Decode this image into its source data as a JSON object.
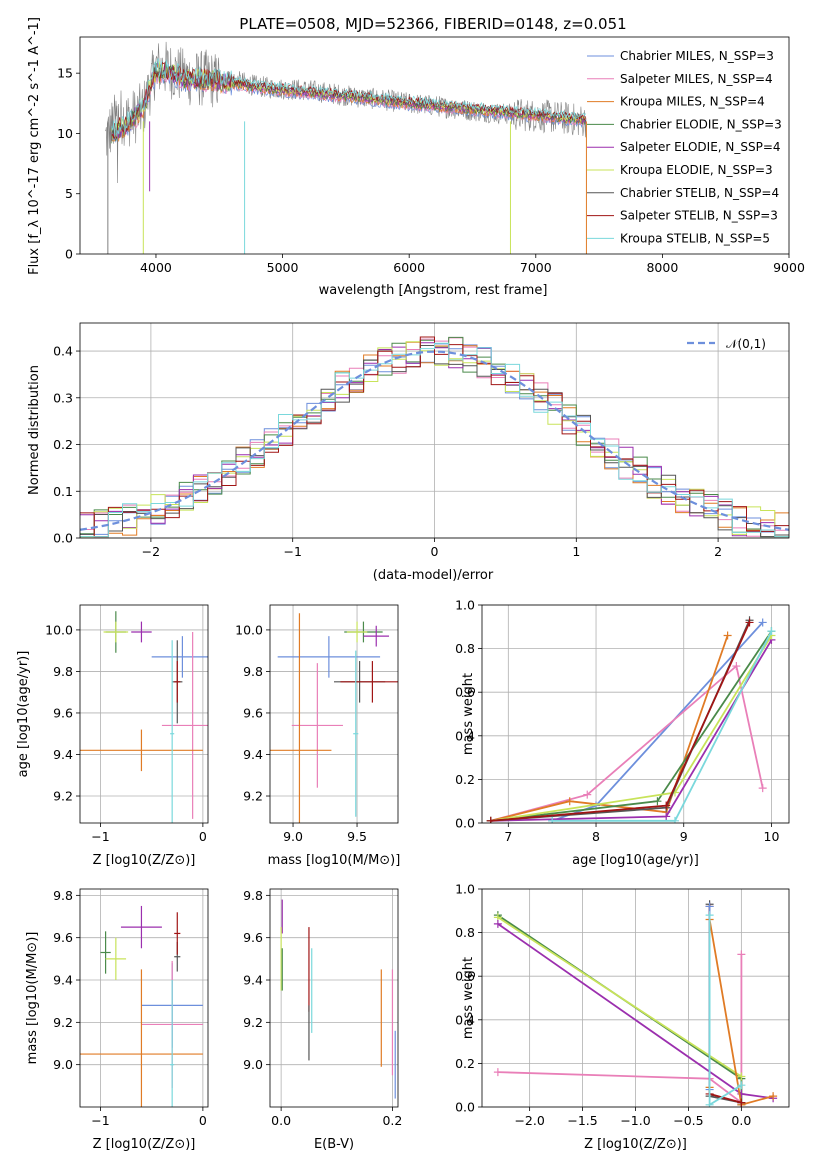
{
  "chart_data": [
    {
      "type": "line",
      "title": "PLATE=0508, MJD=52366, FIBERID=0148, z=0.051",
      "xlabel": "wavelength [Angstrom, rest frame]",
      "ylabel": "Flux [f_λ 10^-17 erg cm^-2 s^-1 A^-1]",
      "xlim": [
        3400,
        9000
      ],
      "ylim": [
        0,
        18
      ],
      "xticks": [
        4000,
        5000,
        6000,
        7000,
        8000,
        9000
      ],
      "yticks": [
        0,
        5,
        10,
        15
      ],
      "legend": {
        "placement": "right",
        "entries": [
          {
            "label": "Chabrier MILES, N_SSP=3",
            "color": "#6d8fdc"
          },
          {
            "label": "Salpeter MILES, N_SSP=4",
            "color": "#e97fb8"
          },
          {
            "label": "Kroupa MILES, N_SSP=4",
            "color": "#e07b25"
          },
          {
            "label": "Chabrier ELODIE, N_SSP=3",
            "color": "#4a8a4a"
          },
          {
            "label": "Salpeter ELODIE, N_SSP=4",
            "color": "#9b2fae"
          },
          {
            "label": "Kroupa ELODIE, N_SSP=3",
            "color": "#c8e35a"
          },
          {
            "label": "Chabrier STELIB, N_SSP=4",
            "color": "#555555"
          },
          {
            "label": "Salpeter STELIB, N_SSP=3",
            "color": "#a01515"
          },
          {
            "label": "Kroupa STELIB, N_SSP=5",
            "color": "#7ad8dc"
          }
        ]
      },
      "series": [
        {
          "name": "data",
          "color": "#808080",
          "x": [
            3600,
            3700,
            3800,
            3900,
            4000,
            4100,
            4200,
            4300,
            4400,
            4500,
            4600,
            4700,
            4800,
            4900,
            5000,
            5200,
            5400,
            5600,
            5800,
            6000,
            6200,
            6400,
            6600,
            6800,
            7000,
            7200,
            7400
          ],
          "y": [
            9.5,
            11.5,
            11.2,
            12.0,
            15.5,
            15.3,
            14.8,
            14.5,
            14.6,
            14.3,
            14.4,
            14.2,
            13.9,
            13.8,
            13.7,
            13.6,
            13.3,
            13.0,
            12.8,
            12.5,
            12.3,
            12.0,
            11.8,
            11.6,
            11.5,
            11.3,
            11.0
          ]
        },
        {
          "name": "model",
          "color": "#7ad8dc",
          "x": [
            3650,
            3800,
            3900,
            4000,
            4100,
            4200,
            4400,
            4600,
            4800,
            5000,
            5500,
            6000,
            6500,
            7000,
            7400
          ],
          "y": [
            9.8,
            11.0,
            12.2,
            15.2,
            15.0,
            14.6,
            14.4,
            14.2,
            13.8,
            13.6,
            13.1,
            12.5,
            12.0,
            11.5,
            11.1
          ]
        }
      ]
    },
    {
      "type": "bar",
      "xlabel": "(data-model)/error",
      "ylabel": "Normed distribution",
      "xlim": [
        -2.5,
        2.5
      ],
      "ylim": [
        0,
        0.46
      ],
      "xticks": [
        -2,
        -1,
        0,
        1,
        2
      ],
      "yticks": [
        0.0,
        0.1,
        0.2,
        0.3,
        0.4
      ],
      "legend": {
        "placement": "top-right",
        "entries": [
          {
            "label": "𝒩(0,1)",
            "color": "#6d8fdc"
          }
        ]
      },
      "bin_width": 0.1
    },
    {
      "type": "scatter",
      "xlabel": "Z [log10(Z/Z⊙)]",
      "ylabel": "age [log10(age/yr)]",
      "xlim": [
        -1.2,
        0.05
      ],
      "ylim": [
        9.07,
        10.12
      ],
      "xticks": [
        -1,
        0
      ],
      "yticks": [
        9.2,
        9.4,
        9.6,
        9.8,
        10.0
      ],
      "points": [
        {
          "color": "#6d8fdc",
          "x": -0.2,
          "y": 9.87,
          "xerr": 0.3,
          "yerr": 0.1
        },
        {
          "color": "#e97fb8",
          "x": -0.1,
          "y": 9.54,
          "xerr": 0.3,
          "yerr": 0.45
        },
        {
          "color": "#e07b25",
          "x": -0.6,
          "y": 9.42,
          "xerr": 0.6,
          "yerr": 0.1
        },
        {
          "color": "#4a8a4a",
          "x": -0.85,
          "y": 9.99,
          "xerr": 0.1,
          "yerr": 0.1
        },
        {
          "color": "#9b2fae",
          "x": -0.6,
          "y": 9.99,
          "xerr": 0.1,
          "yerr": 0.05
        },
        {
          "color": "#c8e35a",
          "x": -0.85,
          "y": 9.99,
          "xerr": 0.12,
          "yerr": 0.05
        },
        {
          "color": "#555555",
          "x": -0.25,
          "y": 9.75,
          "xerr": 0.05,
          "yerr": 0.2
        },
        {
          "color": "#a01515",
          "x": -0.25,
          "y": 9.75,
          "xerr": 0.03,
          "yerr": 0.1
        },
        {
          "color": "#7ad8dc",
          "x": -0.3,
          "y": 9.5,
          "xerr": 0.02,
          "yerr": 0.45
        }
      ]
    },
    {
      "type": "scatter",
      "xlabel": "mass [log10(M/M⊙)]",
      "ylabel": "",
      "xlim": [
        8.82,
        9.82
      ],
      "ylim": [
        9.07,
        10.12
      ],
      "xticks": [
        9.0,
        9.5
      ],
      "yticks": [
        9.2,
        9.4,
        9.6,
        9.8,
        10.0
      ],
      "points": [
        {
          "color": "#6d8fdc",
          "x": 9.28,
          "y": 9.87,
          "xerr": 0.4,
          "yerr": 0.1
        },
        {
          "color": "#e97fb8",
          "x": 9.19,
          "y": 9.54,
          "xerr": 0.2,
          "yerr": 0.3
        },
        {
          "color": "#e07b25",
          "x": 9.05,
          "y": 9.42,
          "xerr": 0.25,
          "yerr": 0.66
        },
        {
          "color": "#4a8a4a",
          "x": 9.55,
          "y": 9.99,
          "xerr": 0.15,
          "yerr": 0.05
        },
        {
          "color": "#9b2fae",
          "x": 9.65,
          "y": 9.97,
          "xerr": 0.1,
          "yerr": 0.05
        },
        {
          "color": "#c8e35a",
          "x": 9.5,
          "y": 9.99,
          "xerr": 0.08,
          "yerr": 0.05
        },
        {
          "color": "#555555",
          "x": 9.52,
          "y": 9.75,
          "xerr": 0.2,
          "yerr": 0.1
        },
        {
          "color": "#a01515",
          "x": 9.62,
          "y": 9.75,
          "xerr": 0.25,
          "yerr": 0.1
        },
        {
          "color": "#7ad8dc",
          "x": 9.49,
          "y": 9.5,
          "xerr": 0.02,
          "yerr": 0.4
        }
      ]
    },
    {
      "type": "line",
      "xlabel": "age [log10(age/yr)]",
      "ylabel": "mass weight",
      "xlim": [
        6.7,
        10.2
      ],
      "ylim": [
        0,
        1
      ],
      "xticks": [
        7,
        8,
        9,
        10
      ],
      "yticks": [
        0.0,
        0.2,
        0.4,
        0.6,
        0.8,
        1.0
      ],
      "series": [
        {
          "color": "#6d8fdc",
          "x": [
            7.5,
            8.0,
            9.9
          ],
          "y": [
            0.01,
            0.08,
            0.92
          ]
        },
        {
          "color": "#e97fb8",
          "x": [
            6.8,
            7.9,
            9.6,
            9.9
          ],
          "y": [
            0.01,
            0.13,
            0.72,
            0.16
          ]
        },
        {
          "color": "#e07b25",
          "x": [
            6.8,
            7.7,
            8.8,
            9.5
          ],
          "y": [
            0.01,
            0.1,
            0.05,
            0.86
          ]
        },
        {
          "color": "#4a8a4a",
          "x": [
            6.8,
            8.7,
            10.0
          ],
          "y": [
            0.01,
            0.1,
            0.88
          ]
        },
        {
          "color": "#9b2fae",
          "x": [
            6.8,
            8.8,
            10.0
          ],
          "y": [
            0.01,
            0.03,
            0.84
          ]
        },
        {
          "color": "#c8e35a",
          "x": [
            6.8,
            8.9,
            10.0
          ],
          "y": [
            0.01,
            0.14,
            0.86
          ]
        },
        {
          "color": "#555555",
          "x": [
            6.8,
            8.8,
            9.75
          ],
          "y": [
            0.01,
            0.07,
            0.93
          ]
        },
        {
          "color": "#a01515",
          "x": [
            6.8,
            8.8,
            9.75
          ],
          "y": [
            0.01,
            0.08,
            0.92
          ]
        },
        {
          "color": "#7ad8dc",
          "x": [
            7.5,
            8.9,
            10.0
          ],
          "y": [
            0.01,
            0.01,
            0.88
          ]
        }
      ]
    },
    {
      "type": "scatter",
      "xlabel": "Z [log10(Z/Z⊙)]",
      "ylabel": "mass [log10(M/M⊙)]",
      "xlim": [
        -1.2,
        0.05
      ],
      "ylim": [
        8.8,
        9.83
      ],
      "xticks": [
        -1,
        0
      ],
      "yticks": [
        9.0,
        9.2,
        9.4,
        9.6,
        9.8
      ],
      "points": [
        {
          "color": "#6d8fdc",
          "x": -0.3,
          "y": 9.28,
          "xerr": 0.3,
          "yerr": 0.2
        },
        {
          "color": "#e97fb8",
          "x": -0.3,
          "y": 9.19,
          "xerr": 0.3,
          "yerr": 0.3
        },
        {
          "color": "#e07b25",
          "x": -0.6,
          "y": 9.05,
          "xerr": 0.6,
          "yerr": 0.4
        },
        {
          "color": "#4a8a4a",
          "x": -0.95,
          "y": 9.53,
          "xerr": 0.05,
          "yerr": 0.1
        },
        {
          "color": "#9b2fae",
          "x": -0.6,
          "y": 9.65,
          "xerr": 0.2,
          "yerr": 0.1
        },
        {
          "color": "#c8e35a",
          "x": -0.85,
          "y": 9.5,
          "xerr": 0.1,
          "yerr": 0.1
        },
        {
          "color": "#555555",
          "x": -0.25,
          "y": 9.51,
          "xerr": 0.03,
          "yerr": 0.07
        },
        {
          "color": "#a01515",
          "x": -0.25,
          "y": 9.62,
          "xerr": 0.03,
          "yerr": 0.1
        },
        {
          "color": "#7ad8dc",
          "x": -0.3,
          "y": 9.0,
          "xerr": 0.02,
          "yerr": 0.4
        }
      ]
    },
    {
      "type": "scatter",
      "xlabel": "E(B-V)",
      "ylabel": "",
      "xlim": [
        -0.02,
        0.21
      ],
      "ylim": [
        8.8,
        9.83
      ],
      "xticks": [
        0.0,
        0.2
      ],
      "yticks": [
        9.0,
        9.2,
        9.4,
        9.6,
        9.8
      ],
      "points": [
        {
          "color": "#9b2fae",
          "x": 0.002,
          "y": 9.7,
          "yerr": 0.08
        },
        {
          "color": "#c8e35a",
          "x": 0.0,
          "y": 9.5,
          "yerr": 0.15
        },
        {
          "color": "#4a8a4a",
          "x": 0.002,
          "y": 9.45,
          "yerr": 0.1
        },
        {
          "color": "#a01515",
          "x": 0.05,
          "y": 9.45,
          "yerr": 0.2
        },
        {
          "color": "#555555",
          "x": 0.05,
          "y": 9.15,
          "yerr": 0.13
        },
        {
          "color": "#7ad8dc",
          "x": 0.055,
          "y": 9.35,
          "yerr": 0.2
        },
        {
          "color": "#e07b25",
          "x": 0.18,
          "y": 9.22,
          "yerr": 0.23
        },
        {
          "color": "#e97fb8",
          "x": 0.2,
          "y": 9.2,
          "yerr": 0.25
        },
        {
          "color": "#6d8fdc",
          "x": 0.205,
          "y": 9.0,
          "yerr": 0.16
        }
      ]
    },
    {
      "type": "line",
      "xlabel": "Z [log10(Z/Z⊙)]",
      "ylabel": "mass weight",
      "xlim": [
        -2.45,
        0.45
      ],
      "ylim": [
        0,
        1
      ],
      "xticks": [
        -2.0,
        -1.5,
        -1.0,
        -0.5,
        0.0
      ],
      "yticks": [
        0.0,
        0.2,
        0.4,
        0.6,
        0.8,
        1.0
      ],
      "series": [
        {
          "color": "#e97fb8",
          "x": [
            -2.3,
            -0.3,
            0.0,
            0.0
          ],
          "y": [
            0.16,
            0.13,
            0.02,
            0.7
          ]
        },
        {
          "color": "#4a8a4a",
          "x": [
            -2.3,
            0.0,
            0.0
          ],
          "y": [
            0.88,
            0.13,
            0.01
          ]
        },
        {
          "color": "#c8e35a",
          "x": [
            -2.3,
            0.0
          ],
          "y": [
            0.87,
            0.14
          ]
        },
        {
          "color": "#9b2fae",
          "x": [
            -2.3,
            0.0,
            0.3
          ],
          "y": [
            0.84,
            0.06,
            0.04
          ]
        },
        {
          "color": "#e07b25",
          "x": [
            -0.3,
            -0.3,
            0.0,
            0.3
          ],
          "y": [
            0.09,
            0.86,
            0.01,
            0.05
          ]
        },
        {
          "color": "#555555",
          "x": [
            -0.3,
            -0.3,
            0.0
          ],
          "y": [
            0.93,
            0.05,
            0.02
          ]
        },
        {
          "color": "#a01515",
          "x": [
            -0.3,
            -0.3,
            0.0
          ],
          "y": [
            0.92,
            0.06,
            0.02
          ]
        },
        {
          "color": "#6d8fdc",
          "x": [
            -0.3,
            -0.3
          ],
          "y": [
            0.92,
            0.08
          ]
        },
        {
          "color": "#7ad8dc",
          "x": [
            -0.3,
            -0.3,
            0.0
          ],
          "y": [
            0.88,
            0.01,
            0.1
          ]
        }
      ]
    }
  ]
}
